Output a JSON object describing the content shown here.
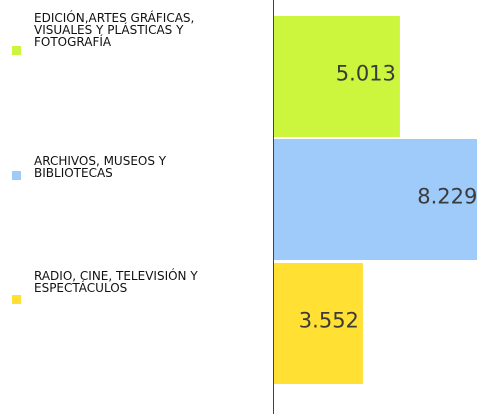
{
  "chart_data": {
    "type": "bar",
    "orientation": "horizontal",
    "categories": [
      "EDICIÓN,ARTES GRÁFICAS, VISUALES Y PLÁSTICAS Y FOTOGRAFÍA",
      "ARCHIVOS, MUSEOS Y BIBLIOTECAS",
      "RADIO, CINE, TELEVISIÓN Y ESPECTÁCULOS"
    ],
    "values": [
      5013,
      8229,
      3552
    ],
    "value_labels": [
      "5.013",
      "8.229",
      "3.552"
    ],
    "colors": [
      "#ccf53d",
      "#9fcbfa",
      "#ffe033"
    ],
    "xlim": [
      0,
      7900
    ]
  }
}
